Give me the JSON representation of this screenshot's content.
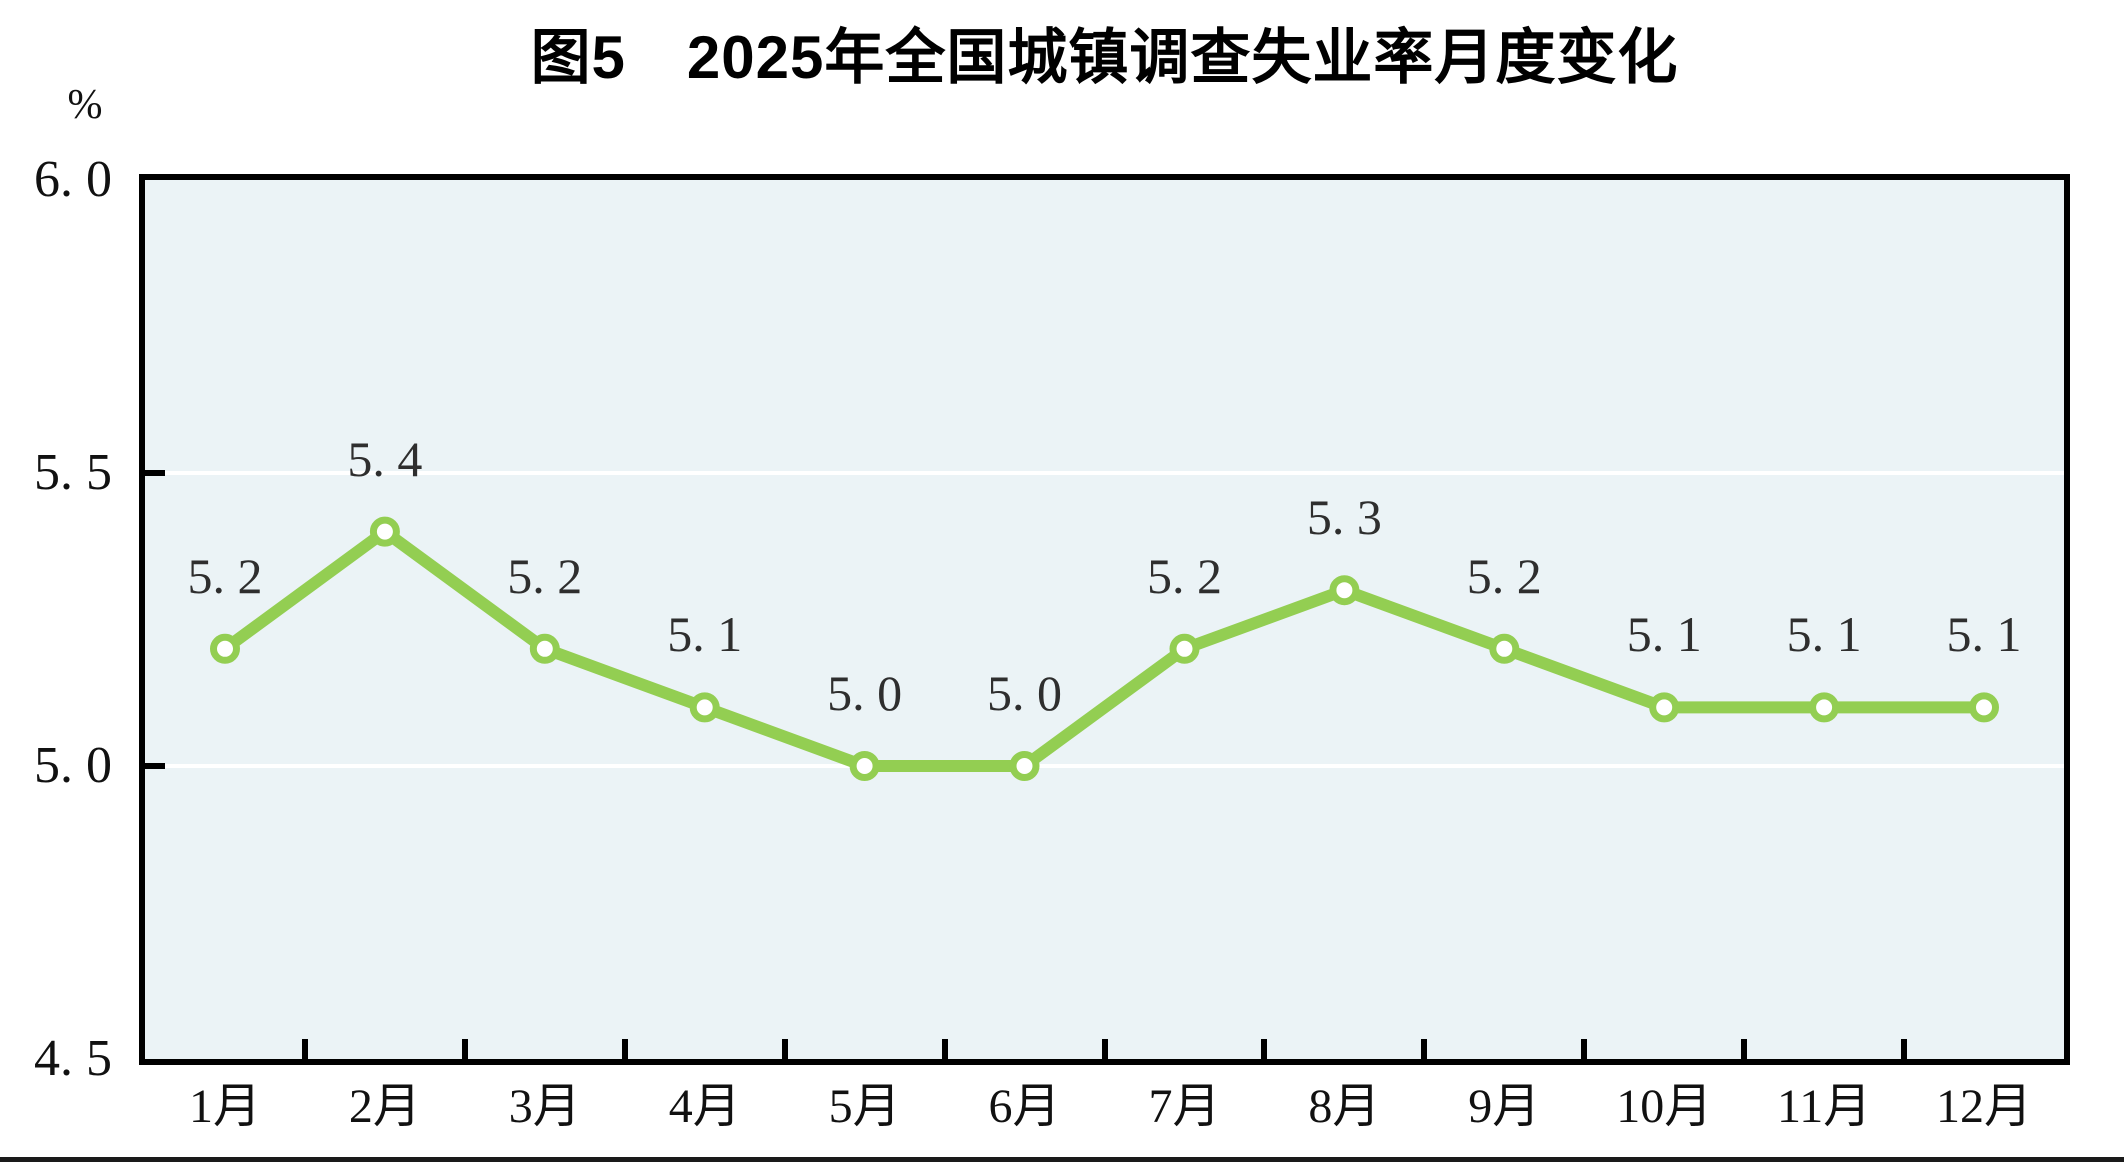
{
  "figure": {
    "title": "图5　2025年全国城镇调查失业率月度变化",
    "unit_label": "%"
  },
  "chart_data": {
    "type": "line",
    "title": "图5 2025年全国城镇调查失业率月度变化",
    "categories": [
      "1月",
      "2月",
      "3月",
      "4月",
      "5月",
      "6月",
      "7月",
      "8月",
      "9月",
      "10月",
      "11月",
      "12月"
    ],
    "values": [
      5.2,
      5.4,
      5.2,
      5.1,
      5.0,
      5.0,
      5.2,
      5.3,
      5.2,
      5.1,
      5.1,
      5.1
    ],
    "point_labels": [
      "5. 2",
      "5. 4",
      "5. 2",
      "5. 1",
      "5. 0",
      "5. 0",
      "5. 2",
      "5. 3",
      "5. 2",
      "5. 1",
      "5. 1",
      "5. 1"
    ],
    "xlabel": "",
    "ylabel": "%",
    "ylim": [
      4.5,
      6.0
    ],
    "y_ticks": [
      6.0,
      5.5,
      5.0,
      4.5
    ],
    "y_tick_labels": [
      "6. 0",
      "5. 5",
      "5. 0",
      "4. 5"
    ],
    "gridline_values": [
      5.5,
      5.0
    ],
    "legend_position": "none",
    "grid": "horizontal white gridlines on shaded panel",
    "colors": {
      "line": "#93ce52",
      "marker_fill": "#ffffff",
      "plot_background": "#ebf3f6",
      "frame": "#000000",
      "gridline": "#ffffff",
      "label_text": "#2e2e2e"
    }
  },
  "page": {
    "bottom_rule": "black horizontal divider line at page bottom"
  }
}
